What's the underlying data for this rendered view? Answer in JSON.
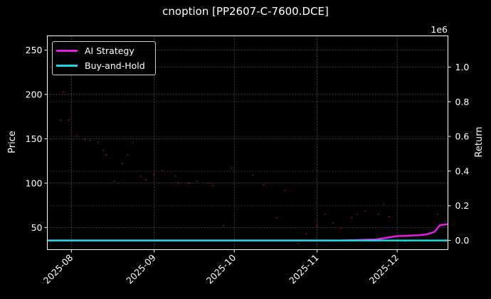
{
  "title": "cnoption [PP2607-C-7600.DCE]",
  "colors": {
    "background": "#000000",
    "ai_strategy": "#e020e0",
    "buy_and_hold": "#22d8e0",
    "price_dots": "#8b1a1a",
    "grid": "#555555",
    "axis": "#ffffff"
  },
  "legend": {
    "items": [
      {
        "label": "AI Strategy",
        "color": "#e020e0"
      },
      {
        "label": "Buy-and-Hold",
        "color": "#22d8e0"
      }
    ]
  },
  "axes": {
    "left_label": "Price",
    "right_label": "Return",
    "right_offset_label": "1e6"
  },
  "chart_data": {
    "type": "line",
    "title": "cnoption [PP2607-C-7600.DCE]",
    "xlabel": "",
    "ylabel": "Price",
    "y2label": "Return",
    "y2_scale": "1e6",
    "x_ticks": [
      "2025-08",
      "2025-09",
      "2025-10",
      "2025-11",
      "2025-12"
    ],
    "x_range": [
      "2025-07-23",
      "2025-12-20"
    ],
    "y_ticks": [
      50,
      100,
      150,
      200,
      250
    ],
    "ylim": [
      25,
      266
    ],
    "y2_ticks": [
      0.0,
      0.2,
      0.4,
      0.6,
      0.8,
      1.0
    ],
    "y2lim": [
      -0.053,
      1.18
    ],
    "grid": true,
    "legend_position": "upper left",
    "series": [
      {
        "name": "Price",
        "type": "scatter",
        "axis": "left",
        "color": "#8b1a1a",
        "points": [
          [
            "2025-07-29",
            203
          ],
          [
            "2025-07-28",
            171
          ],
          [
            "2025-07-31",
            171
          ],
          [
            "2025-08-03",
            153
          ],
          [
            "2025-08-06",
            149
          ],
          [
            "2025-08-08",
            148
          ],
          [
            "2025-08-11",
            146
          ],
          [
            "2025-08-13",
            137
          ],
          [
            "2025-08-14",
            132
          ],
          [
            "2025-08-17",
            102
          ],
          [
            "2025-08-20",
            122
          ],
          [
            "2025-08-22",
            132
          ],
          [
            "2025-08-24",
            146
          ],
          [
            "2025-08-27",
            108
          ],
          [
            "2025-08-29",
            104
          ],
          [
            "2025-09-01",
            110
          ],
          [
            "2025-09-04",
            114
          ],
          [
            "2025-09-09",
            108
          ],
          [
            "2025-09-10",
            101
          ],
          [
            "2025-09-14",
            100
          ],
          [
            "2025-09-17",
            102
          ],
          [
            "2025-09-21",
            100
          ],
          [
            "2025-09-22",
            100
          ],
          [
            "2025-09-23",
            97
          ],
          [
            "2025-09-27",
            52
          ],
          [
            "2025-09-30",
            117
          ],
          [
            "2025-10-08",
            109
          ],
          [
            "2025-10-12",
            98
          ],
          [
            "2025-10-17",
            61
          ],
          [
            "2025-10-20",
            92
          ],
          [
            "2025-10-25",
            32
          ],
          [
            "2025-10-28",
            43
          ],
          [
            "2025-11-01",
            52
          ],
          [
            "2025-11-04",
            65
          ],
          [
            "2025-11-07",
            55
          ],
          [
            "2025-11-10",
            49
          ],
          [
            "2025-11-14",
            61
          ],
          [
            "2025-11-16",
            65
          ],
          [
            "2025-11-19",
            69
          ],
          [
            "2025-11-24",
            65
          ],
          [
            "2025-11-26",
            76
          ],
          [
            "2025-11-28",
            62
          ],
          [
            "2025-12-04",
            34
          ],
          [
            "2025-12-12",
            36
          ],
          [
            "2025-12-16",
            65
          ],
          [
            "2025-12-19",
            57
          ]
        ]
      },
      {
        "name": "AI Strategy",
        "type": "line",
        "axis": "right",
        "color": "#e020e0",
        "points": [
          [
            "2025-07-23",
            0.0
          ],
          [
            "2025-11-10",
            0.0
          ],
          [
            "2025-11-23",
            0.006
          ],
          [
            "2025-12-01",
            0.025
          ],
          [
            "2025-12-09",
            0.03
          ],
          [
            "2025-12-12",
            0.035
          ],
          [
            "2025-12-15",
            0.05
          ],
          [
            "2025-12-17",
            0.088
          ],
          [
            "2025-12-20",
            0.094
          ]
        ]
      },
      {
        "name": "Buy-and-Hold",
        "type": "line",
        "axis": "right",
        "color": "#22d8e0",
        "points": [
          [
            "2025-07-23",
            0.0
          ],
          [
            "2025-12-20",
            0.0
          ]
        ]
      }
    ]
  }
}
